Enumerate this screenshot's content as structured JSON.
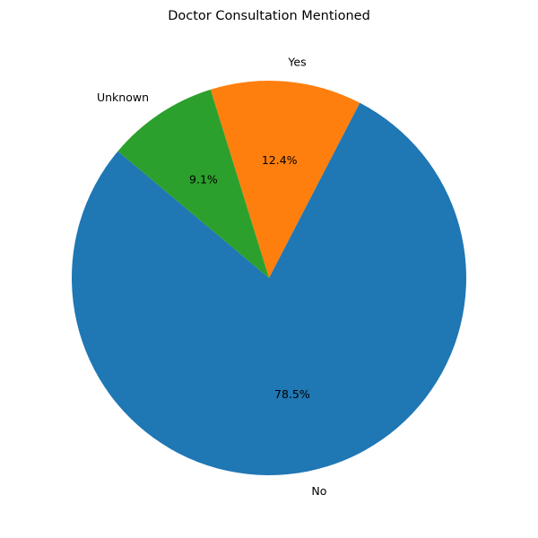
{
  "chart_data": {
    "type": "pie",
    "title": "Doctor Consultation Mentioned",
    "start_angle_deg": 140,
    "direction": "counterclockwise",
    "slices": [
      {
        "label": "No",
        "value": 78.5,
        "pct_text": "78.5%",
        "color": "#1f77b4"
      },
      {
        "label": "Yes",
        "value": 12.4,
        "pct_text": "12.4%",
        "color": "#ff7f0e"
      },
      {
        "label": "Unknown",
        "value": 9.1,
        "pct_text": "9.1%",
        "color": "#2ca02c"
      }
    ]
  }
}
